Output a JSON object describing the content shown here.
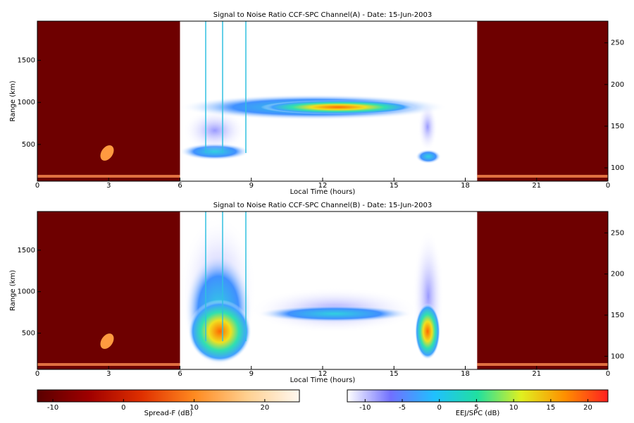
{
  "chart_data": [
    {
      "type": "heatmap",
      "title": "Signal to Noise Ratio CCF-SPC Channel(A) - Date: 15-Jun-2003",
      "xlabel": "Local Time (hours)",
      "ylabel": "Range (km)",
      "xlim": [
        0,
        24
      ],
      "xticks": [
        0,
        3,
        6,
        9,
        12,
        15,
        18,
        21,
        {
          "value": 24,
          "label": "0"
        }
      ],
      "ylim": [
        63,
        1966
      ],
      "yticks": [
        500,
        1000,
        1500
      ],
      "y2lim": [
        84,
        276
      ],
      "y2ticks": [
        100,
        150,
        200,
        250
      ]
    },
    {
      "type": "heatmap",
      "title": "Signal to Noise Ratio CCF-SPC Channel(B) - Date: 15-Jun-2003",
      "xlabel": "Local Time (hours)",
      "ylabel": "Range (km)",
      "xlim": [
        0,
        24
      ],
      "xticks": [
        0,
        3,
        6,
        9,
        12,
        15,
        18,
        21,
        {
          "value": 24,
          "label": "0"
        }
      ],
      "ylim": [
        63,
        1966
      ],
      "yticks": [
        500,
        1000,
        1500
      ],
      "y2lim": [
        84,
        276
      ],
      "y2ticks": [
        100,
        150,
        200,
        250
      ]
    },
    {
      "type": "colorbar",
      "label": "Spread-F (dB)",
      "xlim": [
        -12.2,
        24.9
      ],
      "xticks": [
        -10,
        0,
        10,
        20
      ],
      "colors": [
        "#5a0000",
        "#a00000",
        "#e03000",
        "#ff8a20",
        "#ffd090",
        "#fff8f0"
      ]
    },
    {
      "type": "colorbar",
      "label": "EEJ/SPC (dB)",
      "xlim": [
        -12.4,
        22.7
      ],
      "xticks": [
        -10,
        -5,
        0,
        5,
        10,
        15,
        20
      ],
      "colors": [
        "#ffffff",
        "#7070ff",
        "#20c0ff",
        "#20e0a0",
        "#e0f020",
        "#ff9000",
        "#ff2020"
      ]
    }
  ]
}
